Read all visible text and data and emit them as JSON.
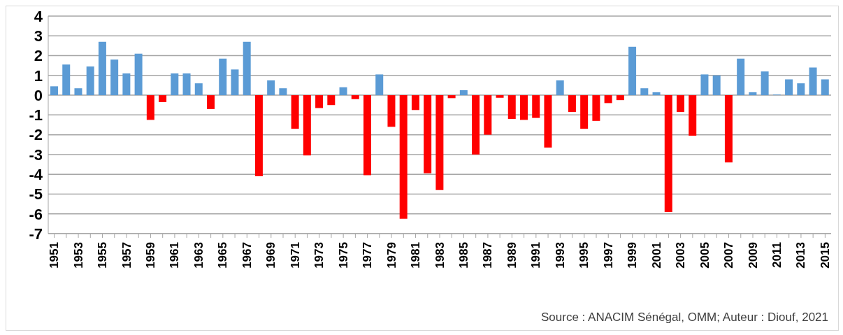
{
  "chart_data": {
    "type": "bar",
    "categories": [
      "1951",
      null,
      "1953",
      null,
      "1955",
      null,
      "1957",
      null,
      "1959",
      null,
      "1961",
      null,
      "1963",
      null,
      "1965",
      null,
      "1967",
      null,
      "1969",
      null,
      "1971",
      null,
      "1973",
      null,
      "1975",
      null,
      "1977",
      null,
      "1979",
      null,
      "1981",
      null,
      "1983",
      null,
      "1985",
      null,
      "1987",
      null,
      "1989",
      null,
      "1991",
      null,
      "1993",
      null,
      "1995",
      null,
      "1997",
      null,
      "1999",
      null,
      "2001",
      null,
      "2003",
      null,
      "2005",
      null,
      "2007",
      null,
      "2009",
      null,
      "2011",
      null,
      "2013",
      null,
      "2015"
    ],
    "values": [
      0.45,
      1.55,
      0.35,
      1.45,
      2.7,
      1.8,
      1.1,
      2.1,
      -1.25,
      -0.35,
      1.1,
      1.1,
      0.6,
      -0.7,
      1.85,
      1.3,
      2.7,
      -4.1,
      0.75,
      0.35,
      -1.7,
      -3.05,
      -0.65,
      -0.5,
      0.4,
      -0.2,
      -4.05,
      1.05,
      -1.6,
      -6.25,
      -0.75,
      -3.95,
      -4.8,
      -0.15,
      0.25,
      -3.0,
      -2.0,
      -0.13,
      -1.2,
      -1.25,
      -1.15,
      -2.65,
      0.75,
      -0.85,
      -1.7,
      -1.3,
      -0.4,
      -0.25,
      2.45,
      0.35,
      0.15,
      -5.9,
      -0.85,
      -2.05,
      1.05,
      1.0,
      -3.4,
      1.85,
      0.15,
      1.2,
      0.03,
      0.8,
      0.6,
      1.4,
      0.8
    ],
    "colors": [
      "#5b9bd5",
      "#5b9bd5",
      "#5b9bd5",
      "#5b9bd5",
      "#5b9bd5",
      "#5b9bd5",
      "#5b9bd5",
      "#5b9bd5",
      "#ff0000",
      "#ff0000",
      "#5b9bd5",
      "#5b9bd5",
      "#5b9bd5",
      "#ff0000",
      "#5b9bd5",
      "#5b9bd5",
      "#5b9bd5",
      "#ff0000",
      "#5b9bd5",
      "#5b9bd5",
      "#ff0000",
      "#ff0000",
      "#ff0000",
      "#ff0000",
      "#5b9bd5",
      "#ff0000",
      "#ff0000",
      "#5b9bd5",
      "#ff0000",
      "#ff0000",
      "#ff0000",
      "#ff0000",
      "#ff0000",
      "#ff0000",
      "#5b9bd5",
      "#ff0000",
      "#ff0000",
      "#ff0000",
      "#ff0000",
      "#ff0000",
      "#ff0000",
      "#ff0000",
      "#5b9bd5",
      "#ff0000",
      "#ff0000",
      "#ff0000",
      "#ff0000",
      "#ff0000",
      "#5b9bd5",
      "#5b9bd5",
      "#5b9bd5",
      "#ff0000",
      "#ff0000",
      "#ff0000",
      "#5b9bd5",
      "#5b9bd5",
      "#ff0000",
      "#5b9bd5",
      "#5b9bd5",
      "#5b9bd5",
      "#5b9bd5",
      "#5b9bd5",
      "#5b9bd5",
      "#5b9bd5",
      "#5b9bd5"
    ],
    "ylim": [
      -7,
      4
    ],
    "yticks": [
      -7,
      -6,
      -5,
      -4,
      -3,
      -2,
      -1,
      0,
      1,
      2,
      3,
      4
    ],
    "grid": "y",
    "legend": false,
    "annotations": [
      "Source : ANACIM Sénégal, OMM; Auteur : Diouf, 2021"
    ]
  }
}
